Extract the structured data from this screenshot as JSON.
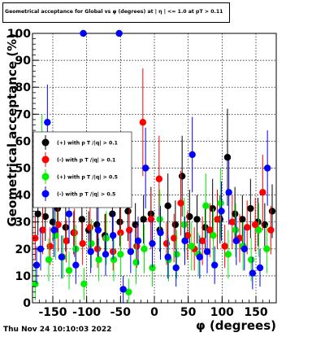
{
  "chart_data": {
    "type": "scatter",
    "title": "Geometrical acceptance for Global vs φ (degrees) at | η | <= 1.0 at pT > 0.11",
    "xlabel": "φ (degrees)",
    "ylabel": "Geometrical acceptance (%)",
    "xlim": [
      -180,
      180
    ],
    "ylim": [
      0,
      100
    ],
    "xticks": [
      -150,
      -100,
      -50,
      0,
      50,
      100,
      150
    ],
    "yticks": [
      0,
      10,
      20,
      30,
      40,
      50,
      60,
      70,
      80,
      90,
      100
    ],
    "grid": true,
    "legend_position": "left",
    "series": [
      {
        "name": "(+) with p T /|q| > 0.1",
        "color": "#000000",
        "points": [
          [
            -172,
            33,
            8
          ],
          [
            -161,
            32,
            9
          ],
          [
            -150,
            30,
            7
          ],
          [
            -143,
            35,
            10
          ],
          [
            -131,
            28,
            9
          ],
          [
            -119,
            26,
            8
          ],
          [
            -107,
            31,
            10
          ],
          [
            -97,
            27,
            7
          ],
          [
            -85,
            29,
            9
          ],
          [
            -73,
            25,
            8
          ],
          [
            -62,
            33,
            10
          ],
          [
            -51,
            30,
            9
          ],
          [
            -39,
            34,
            11
          ],
          [
            -28,
            29,
            8
          ],
          [
            -16,
            31,
            9
          ],
          [
            -5,
            33,
            10
          ],
          [
            8,
            27,
            8
          ],
          [
            20,
            36,
            12
          ],
          [
            31,
            29,
            9
          ],
          [
            41,
            47,
            15
          ],
          [
            52,
            32,
            10
          ],
          [
            63,
            31,
            9
          ],
          [
            75,
            28,
            9
          ],
          [
            86,
            35,
            11
          ],
          [
            97,
            31,
            9
          ],
          [
            108,
            54,
            18
          ],
          [
            119,
            33,
            10
          ],
          [
            130,
            31,
            9
          ],
          [
            142,
            35,
            11
          ],
          [
            153,
            30,
            9
          ],
          [
            163,
            29,
            8
          ],
          [
            174,
            34,
            10
          ]
        ]
      },
      {
        "name": "(-) with p T /|q| > 0.1",
        "color": "#ff0000",
        "points": [
          [
            -176,
            24,
            8
          ],
          [
            -165,
            27,
            9
          ],
          [
            -154,
            21,
            7
          ],
          [
            -142,
            29,
            10
          ],
          [
            -130,
            23,
            8
          ],
          [
            -118,
            26,
            9
          ],
          [
            -106,
            22,
            8
          ],
          [
            -95,
            28,
            10
          ],
          [
            -84,
            20,
            7
          ],
          [
            -72,
            24,
            9
          ],
          [
            -61,
            19,
            7
          ],
          [
            -50,
            26,
            9
          ],
          [
            -37,
            27,
            9
          ],
          [
            -26,
            21,
            8
          ],
          [
            -17,
            67,
            20
          ],
          [
            -5,
            31,
            11
          ],
          [
            7,
            46,
            16
          ],
          [
            18,
            22,
            8
          ],
          [
            29,
            24,
            9
          ],
          [
            39,
            37,
            12
          ],
          [
            49,
            25,
            9
          ],
          [
            59,
            20,
            8
          ],
          [
            71,
            23,
            9
          ],
          [
            82,
            27,
            10
          ],
          [
            93,
            31,
            11
          ],
          [
            104,
            21,
            8
          ],
          [
            115,
            30,
            10
          ],
          [
            126,
            24,
            9
          ],
          [
            137,
            28,
            10
          ],
          [
            149,
            29,
            10
          ],
          [
            160,
            41,
            14
          ],
          [
            172,
            27,
            9
          ]
        ]
      },
      {
        "name": "(+) with p T /|q| > 0.5",
        "color": "#00ee00",
        "points": [
          [
            -176,
            7,
            6
          ],
          [
            -166,
            58,
            12
          ],
          [
            -156,
            16,
            8
          ],
          [
            -146,
            25,
            9
          ],
          [
            -135,
            17,
            8
          ],
          [
            -126,
            12,
            7
          ],
          [
            -116,
            20,
            9
          ],
          [
            -104,
            7,
            6
          ],
          [
            -93,
            22,
            9
          ],
          [
            -82,
            16,
            8
          ],
          [
            -71,
            24,
            10
          ],
          [
            -60,
            16,
            8
          ],
          [
            -50,
            18,
            8
          ],
          [
            -38,
            4,
            5
          ],
          [
            -27,
            15,
            8
          ],
          [
            -15,
            20,
            9
          ],
          [
            -3,
            13,
            7
          ],
          [
            8,
            31,
            11
          ],
          [
            21,
            16,
            8
          ],
          [
            33,
            18,
            9
          ],
          [
            44,
            29,
            10
          ],
          [
            55,
            21,
            9
          ],
          [
            65,
            18,
            8
          ],
          [
            76,
            36,
            12
          ],
          [
            87,
            25,
            10
          ],
          [
            98,
            37,
            13
          ],
          [
            109,
            18,
            9
          ],
          [
            120,
            27,
            10
          ],
          [
            131,
            21,
            9
          ],
          [
            143,
            16,
            8
          ],
          [
            154,
            27,
            10
          ],
          [
            166,
            20,
            9
          ]
        ]
      },
      {
        "name": "(-) with p T /|q| > 0.5",
        "color": "#0000ff",
        "points": [
          [
            -174,
            14,
            7
          ],
          [
            -168,
            20,
            8
          ],
          [
            -158,
            67,
            14
          ],
          [
            -148,
            27,
            10
          ],
          [
            -137,
            17,
            8
          ],
          [
            -126,
            33,
            11
          ],
          [
            -116,
            14,
            7
          ],
          [
            -105,
            100,
            0
          ],
          [
            -94,
            19,
            8
          ],
          [
            -83,
            27,
            10
          ],
          [
            -72,
            18,
            8
          ],
          [
            -61,
            25,
            9
          ],
          [
            -52,
            100,
            0
          ],
          [
            -46,
            5,
            5
          ],
          [
            -35,
            19,
            8
          ],
          [
            -24,
            23,
            9
          ],
          [
            -13,
            50,
            15
          ],
          [
            -3,
            22,
            9
          ],
          [
            9,
            26,
            10
          ],
          [
            20,
            17,
            8
          ],
          [
            32,
            13,
            7
          ],
          [
            45,
            23,
            9
          ],
          [
            56,
            55,
            14
          ],
          [
            67,
            17,
            8
          ],
          [
            78,
            19,
            8
          ],
          [
            89,
            14,
            7
          ],
          [
            99,
            34,
            11
          ],
          [
            110,
            41,
            12
          ],
          [
            121,
            23,
            9
          ],
          [
            133,
            20,
            8
          ],
          [
            145,
            11,
            6
          ],
          [
            156,
            13,
            7
          ],
          [
            167,
            50,
            14
          ]
        ]
      }
    ]
  },
  "footer": {
    "timestamp": "Thu Nov 24 10:10:03 2022"
  }
}
